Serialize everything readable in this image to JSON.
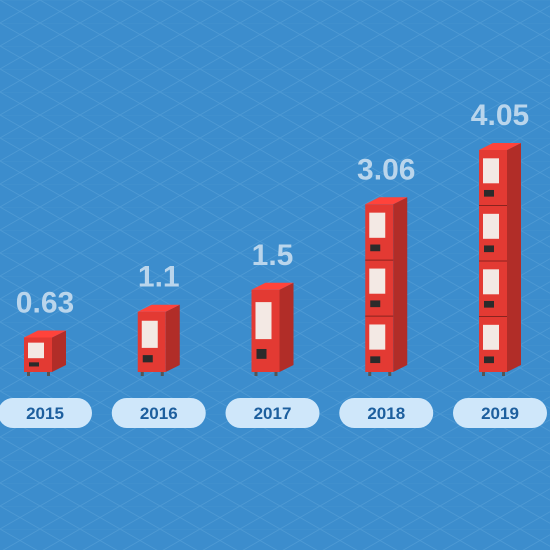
{
  "chart_data": {
    "type": "bar",
    "categories": [
      "2015",
      "2016",
      "2017",
      "2018",
      "2019"
    ],
    "values": [
      0.63,
      1.1,
      1.5,
      3.06,
      4.05
    ],
    "color": "#e33a33"
  }
}
